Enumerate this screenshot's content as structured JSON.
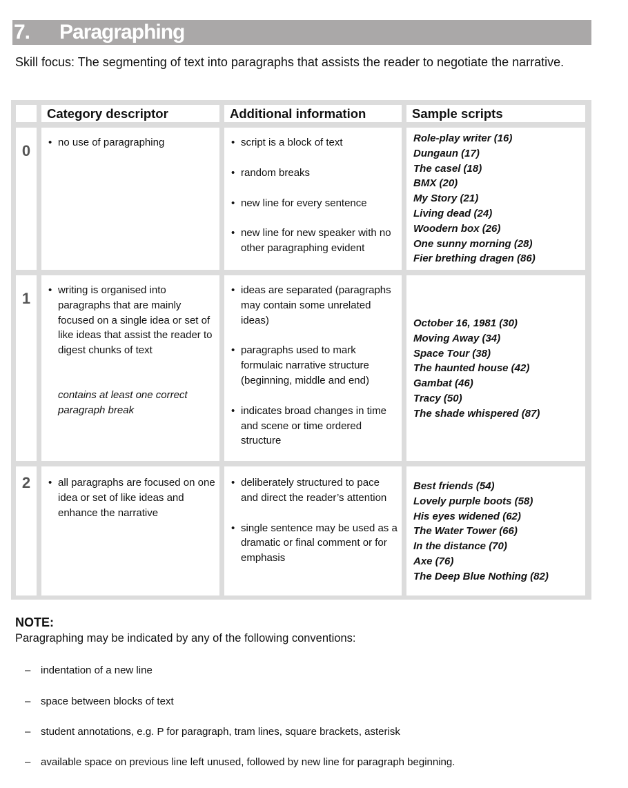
{
  "title": {
    "number": "7.",
    "text": "Paragraphing"
  },
  "skill_focus": "Skill focus: The segmenting of text into paragraphs that assists the reader to negotiate the narrative.",
  "table": {
    "headers": [
      "",
      "Category descriptor",
      "Additional information",
      "Sample scripts"
    ],
    "rows": [
      {
        "score": "0",
        "descriptor": [
          "no use of paragraphing"
        ],
        "descriptor_note": "",
        "additional": [
          "script is a block of text",
          "random breaks",
          "new line for every sentence",
          "new line for new speaker with no other paragraphing evident"
        ],
        "samples": [
          "Role-play writer (16)",
          "Dungaun (17)",
          "The casel (18)",
          "BMX (20)",
          "My Story (21)",
          "Living dead (24)",
          "Woodern box (26)",
          "One sunny morning (28)",
          "Fier brething dragen (86)"
        ]
      },
      {
        "score": "1",
        "descriptor": [
          "writing is organised into paragraphs that are mainly focused on a single idea or set of like ideas that assist the reader to digest chunks of text"
        ],
        "descriptor_note": "contains at least one correct paragraph break",
        "additional": [
          "ideas are separated (paragraphs may contain some unrelated ideas)",
          "paragraphs used to mark formulaic narrative structure (beginning, middle and end)",
          "indicates broad changes in time and scene or time ordered structure"
        ],
        "samples": [
          "October 16, 1981 (30)",
          "Moving Away (34)",
          "Space Tour (38)",
          "The haunted house (42)",
          "Gambat (46)",
          "Tracy (50)",
          "The shade whispered (87)"
        ]
      },
      {
        "score": "2",
        "descriptor": [
          "all paragraphs are focused on one idea or set of like ideas and enhance the narrative"
        ],
        "descriptor_note": "",
        "additional": [
          "deliberately structured to pace and direct the reader’s attention",
          "single sentence may be used as a dramatic or final comment or for emphasis"
        ],
        "samples": [
          "Best friends (54)",
          "Lovely purple boots (58)",
          "His eyes widened (62)",
          "The Water Tower (66)",
          "In the distance (70)",
          "Axe (76)",
          "The Deep Blue Nothing (82)"
        ]
      }
    ]
  },
  "note": {
    "heading": "NOTE:",
    "intro": "Paragraphing may be indicated by any of the following conventions:",
    "dash": "–",
    "items": [
      "indentation of a new line",
      "space between blocks of text",
      "student annotations, e.g. P for paragraph, tram lines, square brackets, asterisk",
      "available space on previous line left unused, followed by new line for paragraph beginning."
    ]
  }
}
